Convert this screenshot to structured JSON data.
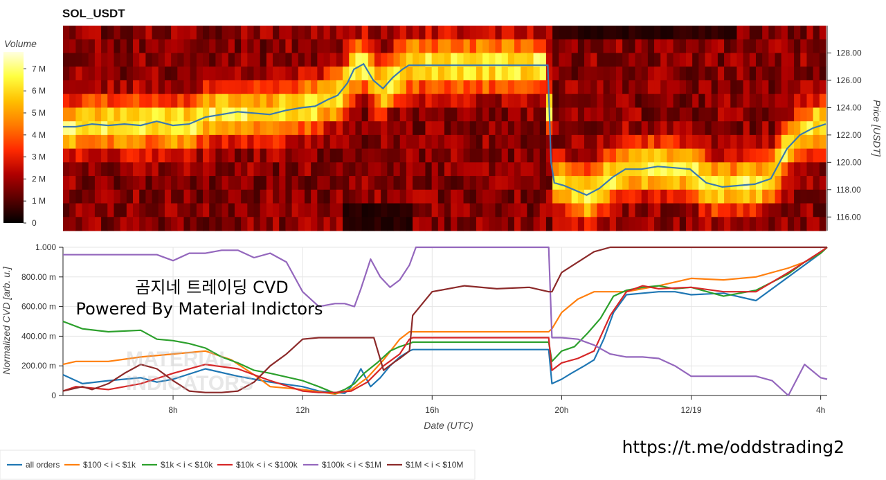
{
  "chart_data": [
    {
      "type": "heatmap",
      "title": "SOL_USDT",
      "colorbar": {
        "label": "Volume",
        "ticks": [
          "0",
          "1 M",
          "2 M",
          "3 M",
          "4 M",
          "5 M",
          "6 M",
          "7 M"
        ],
        "colors": [
          "#000000",
          "#5a0000",
          "#b00000",
          "#ff2a00",
          "#ff7a00",
          "#ffc000",
          "#ffff40",
          "#ffffe0"
        ]
      },
      "y_right": {
        "label": "Price [USDT]",
        "ticks": [
          116,
          118,
          120,
          122,
          124,
          126,
          128
        ],
        "tick_labels": [
          "116.00",
          "118.00",
          "120.00",
          "122.00",
          "124.00",
          "126.00",
          "128.00"
        ],
        "range": [
          115,
          130
        ]
      },
      "x_range_hours": [
        4.6,
        28.2
      ],
      "price_series": {
        "color": "#3a78b0",
        "x_hours": [
          4.6,
          5.0,
          5.5,
          6.0,
          6.5,
          7.0,
          7.5,
          8.0,
          8.5,
          9.0,
          9.5,
          10.0,
          10.5,
          11.0,
          11.5,
          12.0,
          12.4,
          12.8,
          13.1,
          13.4,
          13.6,
          13.9,
          14.2,
          14.5,
          14.8,
          15.1,
          15.3,
          15.4,
          16.0,
          17.0,
          18.0,
          19.0,
          19.6,
          19.7,
          19.8,
          20.1,
          20.4,
          20.8,
          21.2,
          21.6,
          22.0,
          22.5,
          23.0,
          23.5,
          24.0,
          24.5,
          25.0,
          25.5,
          26.0,
          26.5,
          27.0,
          27.4,
          27.8,
          28.2
        ],
        "y": [
          122.6,
          122.6,
          122.8,
          122.7,
          122.8,
          122.7,
          123.0,
          122.7,
          122.8,
          123.3,
          123.5,
          123.7,
          123.6,
          123.5,
          123.8,
          124.0,
          124.1,
          124.6,
          124.9,
          125.8,
          126.8,
          127.2,
          126.0,
          125.4,
          126.2,
          126.8,
          127.1,
          127.1,
          127.1,
          127.1,
          127.1,
          127.1,
          127.1,
          120.0,
          118.5,
          118.3,
          118.0,
          117.6,
          118.1,
          118.9,
          119.5,
          119.5,
          119.7,
          119.6,
          119.5,
          118.5,
          118.2,
          118.3,
          118.4,
          118.8,
          121.0,
          122.0,
          122.5,
          122.8
        ]
      }
    },
    {
      "type": "line",
      "xlabel": "Date (UTC)",
      "ylabel": "Normalized CVD [arb. u.]",
      "xlim_hours": [
        4.6,
        28.2
      ],
      "ylim": [
        0,
        1000
      ],
      "x_ticks": [
        {
          "h": 8,
          "label": "8h"
        },
        {
          "h": 12,
          "label": "12h"
        },
        {
          "h": 16,
          "label": "16h"
        },
        {
          "h": 20,
          "label": "20h"
        },
        {
          "h": 24,
          "label": "12/19"
        },
        {
          "h": 28,
          "label": "4h"
        }
      ],
      "y_ticks": [
        {
          "v": 0,
          "label": "0"
        },
        {
          "v": 200,
          "label": "200.00 m"
        },
        {
          "v": 400,
          "label": "400.00 m"
        },
        {
          "v": 600,
          "label": "600.00 m"
        },
        {
          "v": 800,
          "label": "800.00 m"
        },
        {
          "v": 1000,
          "label": "1.000"
        }
      ],
      "grid": true,
      "legend_position": "bottom",
      "series": [
        {
          "name": "all orders",
          "color": "#1f77b4",
          "x": [
            4.6,
            5.2,
            6.0,
            7.0,
            7.5,
            8.0,
            9.0,
            10.0,
            11.0,
            12.0,
            12.5,
            13.0,
            13.3,
            13.5,
            13.8,
            14.1,
            14.4,
            14.7,
            15.0,
            15.3,
            15.4,
            16.0,
            17.0,
            18.0,
            19.0,
            19.6,
            19.7,
            20.0,
            20.3,
            20.7,
            21.0,
            21.3,
            21.6,
            22.0,
            22.5,
            23.0,
            23.5,
            24.0,
            25.0,
            26.0,
            27.0,
            27.5,
            28.0,
            28.2
          ],
          "y": [
            140,
            80,
            100,
            120,
            90,
            110,
            180,
            130,
            90,
            60,
            30,
            20,
            15,
            60,
            180,
            60,
            120,
            200,
            260,
            300,
            310,
            310,
            310,
            310,
            310,
            310,
            80,
            110,
            150,
            200,
            240,
            380,
            560,
            680,
            690,
            700,
            700,
            680,
            690,
            640,
            800,
            880,
            960,
            1000
          ]
        },
        {
          "name": "$100 < i < $1k",
          "color": "#ff7f0e",
          "x": [
            4.6,
            5.0,
            6.0,
            7.0,
            8.0,
            9.0,
            9.8,
            10.5,
            11.0,
            12.0,
            13.0,
            13.5,
            14.0,
            14.5,
            15.0,
            15.3,
            15.4,
            16.0,
            17.0,
            18.0,
            19.0,
            19.6,
            19.7,
            20.0,
            20.5,
            21.0,
            22.0,
            23.0,
            24.0,
            25.0,
            26.0,
            27.0,
            27.5,
            28.0,
            28.2
          ],
          "y": [
            210,
            230,
            230,
            260,
            280,
            300,
            240,
            140,
            60,
            40,
            10,
            40,
            120,
            240,
            380,
            430,
            430,
            430,
            430,
            430,
            430,
            430,
            450,
            560,
            650,
            700,
            700,
            740,
            790,
            780,
            800,
            860,
            900,
            960,
            1000
          ]
        },
        {
          "name": "$1k < i < $10k",
          "color": "#2ca02c",
          "x": [
            4.6,
            5.2,
            6.0,
            7.0,
            7.5,
            8.0,
            8.5,
            9.0,
            9.5,
            10.0,
            10.5,
            11.0,
            12.0,
            12.5,
            13.0,
            13.3,
            13.6,
            13.9,
            14.3,
            14.7,
            15.0,
            15.3,
            15.4,
            16.0,
            17.0,
            18.0,
            19.0,
            19.6,
            19.7,
            20.0,
            20.4,
            20.8,
            21.2,
            21.6,
            22.0,
            22.5,
            23.0,
            23.5,
            24.0,
            25.0,
            26.0,
            27.0,
            27.5,
            28.0,
            28.2
          ],
          "y": [
            500,
            450,
            430,
            440,
            380,
            370,
            350,
            320,
            260,
            220,
            170,
            150,
            100,
            60,
            15,
            40,
            80,
            150,
            220,
            300,
            330,
            350,
            360,
            360,
            360,
            360,
            360,
            360,
            230,
            300,
            330,
            420,
            520,
            670,
            710,
            730,
            740,
            720,
            730,
            670,
            710,
            820,
            900,
            960,
            1000
          ]
        },
        {
          "name": "$10k < i < $100k",
          "color": "#d62728",
          "x": [
            4.6,
            5.0,
            6.0,
            7.0,
            8.0,
            9.0,
            10.0,
            11.0,
            12.0,
            12.5,
            13.0,
            13.5,
            14.0,
            14.5,
            15.0,
            15.3,
            15.4,
            16.0,
            17.0,
            18.0,
            19.0,
            19.6,
            19.7,
            20.0,
            20.5,
            21.0,
            21.5,
            22.0,
            22.5,
            23.0,
            24.0,
            25.0,
            26.0,
            27.0,
            27.5,
            28.0,
            28.2
          ],
          "y": [
            30,
            60,
            40,
            80,
            150,
            210,
            180,
            100,
            30,
            20,
            20,
            30,
            90,
            200,
            280,
            380,
            390,
            390,
            390,
            390,
            390,
            390,
            170,
            220,
            250,
            300,
            540,
            700,
            740,
            720,
            730,
            700,
            700,
            830,
            900,
            970,
            1000
          ]
        },
        {
          "name": "$100k < i < $1M",
          "color": "#9467bd",
          "x": [
            4.6,
            5.5,
            6.5,
            7.5,
            8.0,
            8.5,
            9.0,
            9.5,
            10.0,
            10.5,
            11.0,
            11.5,
            12.0,
            12.5,
            13.0,
            13.3,
            13.6,
            13.8,
            14.1,
            14.4,
            14.7,
            15.0,
            15.3,
            15.5,
            16.0,
            17.0,
            18.0,
            19.0,
            19.6,
            19.7,
            20.0,
            20.5,
            21.0,
            21.5,
            22.0,
            22.5,
            23.0,
            23.5,
            24.0,
            25.0,
            26.0,
            26.5,
            27.0,
            27.5,
            28.0,
            28.2
          ],
          "y": [
            950,
            950,
            950,
            950,
            910,
            960,
            960,
            980,
            980,
            930,
            960,
            900,
            700,
            600,
            620,
            620,
            600,
            720,
            920,
            800,
            730,
            780,
            880,
            1000,
            1000,
            1000,
            1000,
            1000,
            1000,
            390,
            390,
            380,
            340,
            280,
            260,
            260,
            250,
            200,
            130,
            130,
            130,
            100,
            0,
            210,
            120,
            110
          ]
        },
        {
          "name": "$1M < i < $10M",
          "color": "#8c2a2a",
          "x": [
            4.6,
            5.2,
            5.5,
            6.0,
            6.5,
            7.0,
            7.5,
            8.0,
            8.5,
            9.0,
            9.5,
            10.0,
            10.5,
            11.0,
            11.5,
            12.0,
            12.5,
            13.0,
            13.3,
            13.6,
            13.9,
            14.2,
            14.5,
            14.8,
            15.0,
            15.3,
            15.4,
            16.0,
            17.0,
            18.0,
            19.0,
            19.6,
            19.7,
            20.0,
            20.5,
            21.0,
            21.5,
            22.0,
            22.5,
            23.0,
            24.0,
            25.0,
            26.0,
            27.0,
            27.5,
            28.0,
            28.2
          ],
          "y": [
            30,
            60,
            40,
            80,
            150,
            210,
            180,
            100,
            30,
            20,
            20,
            30,
            90,
            200,
            280,
            380,
            390,
            390,
            390,
            390,
            390,
            390,
            170,
            220,
            250,
            300,
            540,
            700,
            740,
            720,
            730,
            700,
            700,
            830,
            900,
            970,
            1000,
            1000,
            1000,
            1000,
            1000,
            1000,
            1000,
            1000,
            1000,
            1000,
            1000
          ]
        }
      ]
    }
  ],
  "overlay": {
    "line1": "곰지네 트레이딩 CVD",
    "line2": "Powered By Material Indictors",
    "watermark1": "MATERIAL",
    "watermark2": "INDICATORS",
    "link": "https://t.me/oddstrading2"
  },
  "legend": [
    {
      "name": "all orders",
      "color": "#1f77b4"
    },
    {
      "name": "$100 < i < $1k",
      "color": "#ff7f0e"
    },
    {
      "name": "$1k < i < $10k",
      "color": "#2ca02c"
    },
    {
      "name": "$10k < i < $100k",
      "color": "#d62728"
    },
    {
      "name": "$100k < i < $1M",
      "color": "#9467bd"
    },
    {
      "name": "$1M < i < $10M",
      "color": "#8c2a2a"
    }
  ]
}
